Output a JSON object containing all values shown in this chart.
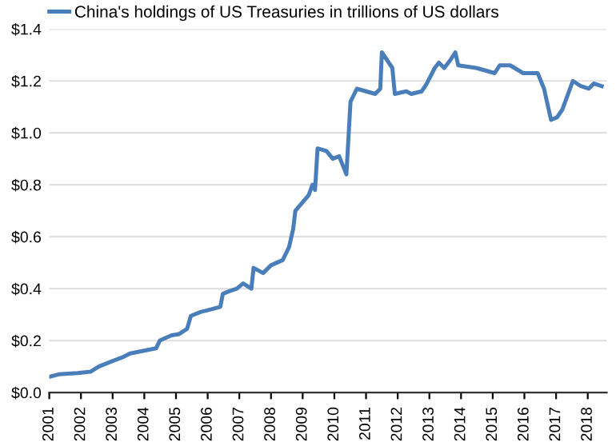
{
  "chart_data": {
    "type": "line",
    "x": [
      2001.0,
      2001.3,
      2001.9,
      2002.3,
      2002.56,
      2002.97,
      2003.3,
      2003.55,
      2003.96,
      2004.37,
      2004.49,
      2004.86,
      2005.1,
      2005.35,
      2005.47,
      2005.77,
      2006.1,
      2006.4,
      2006.48,
      2006.68,
      2006.92,
      2007.12,
      2007.38,
      2007.45,
      2007.75,
      2008.0,
      2008.37,
      2008.57,
      2008.7,
      2008.77,
      2008.98,
      2009.19,
      2009.31,
      2009.39,
      2009.47,
      2009.75,
      2009.95,
      2010.15,
      2010.38,
      2010.51,
      2010.71,
      2011.29,
      2011.45,
      2011.5,
      2011.83,
      2011.91,
      2012.27,
      2012.43,
      2012.76,
      2012.92,
      2013.17,
      2013.3,
      2013.47,
      2013.66,
      2013.82,
      2013.91,
      2014.48,
      2015.06,
      2015.22,
      2015.55,
      2015.96,
      2016.42,
      2016.62,
      2016.84,
      2017.03,
      2017.2,
      2017.41,
      2017.53,
      2017.78,
      2018.03,
      2018.19,
      2018.44
    ],
    "series": [
      {
        "name": "China's holdings of US Treasuries in trillions of US dollars",
        "color": "#4a7ebb",
        "values": [
          0.06,
          0.07,
          0.075,
          0.08,
          0.1,
          0.12,
          0.135,
          0.15,
          0.16,
          0.17,
          0.2,
          0.22,
          0.225,
          0.245,
          0.295,
          0.31,
          0.32,
          0.33,
          0.38,
          0.39,
          0.4,
          0.42,
          0.4,
          0.48,
          0.46,
          0.49,
          0.51,
          0.56,
          0.63,
          0.7,
          0.73,
          0.76,
          0.8,
          0.78,
          0.94,
          0.93,
          0.9,
          0.91,
          0.84,
          1.12,
          1.17,
          1.15,
          1.17,
          1.31,
          1.25,
          1.15,
          1.16,
          1.15,
          1.16,
          1.19,
          1.25,
          1.27,
          1.25,
          1.28,
          1.31,
          1.26,
          1.25,
          1.23,
          1.26,
          1.26,
          1.23,
          1.23,
          1.17,
          1.05,
          1.06,
          1.09,
          1.16,
          1.2,
          1.18,
          1.17,
          1.19,
          1.18
        ]
      }
    ],
    "xlim": [
      2001.0,
      2018.6
    ],
    "xticks": [
      2001,
      2002,
      2003,
      2004,
      2005,
      2006,
      2007,
      2008,
      2009,
      2010,
      2011,
      2012,
      2013,
      2014,
      2015,
      2016,
      2017,
      2018
    ],
    "ylim": [
      0,
      1.4
    ],
    "yticks": [
      {
        "value": 0,
        "label": "$0.0"
      },
      {
        "value": 0.2,
        "label": "$0.2"
      },
      {
        "value": 0.4,
        "label": "$0.4"
      },
      {
        "value": 0.6,
        "label": "$0.6"
      },
      {
        "value": 0.8,
        "label": "$0.8"
      },
      {
        "value": 1.0,
        "label": "$1.0"
      },
      {
        "value": 1.2,
        "label": "$1.2"
      },
      {
        "value": 1.4,
        "label": "$1.4"
      }
    ],
    "grid": "y",
    "legend": "top left",
    "marker": "none",
    "line_style": "solid"
  }
}
